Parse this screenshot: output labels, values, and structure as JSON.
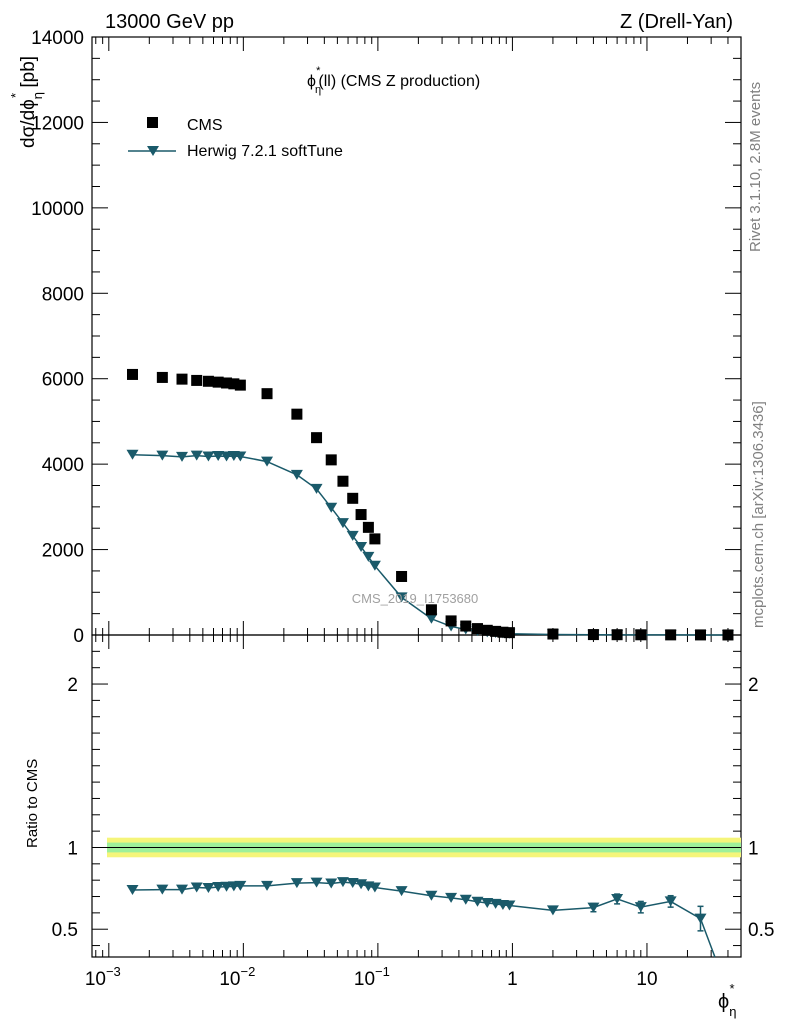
{
  "header": {
    "left": "13000 GeV pp",
    "right": "Z (Drell-Yan)"
  },
  "side_text": {
    "rivet": "Rivet 3.1.10,  2.8M events",
    "source": "mcplots.cern.ch [arXiv:1306.3436]"
  },
  "watermark": "CMS_2019_I1753680",
  "plot_title": {
    "phi": "ϕ",
    "sub": "η",
    "sup": "*",
    "rest": "(ll) (CMS Z production)"
  },
  "ylabel_main": {
    "prefix": "dσ/dϕ",
    "sub": "η",
    "sup": "*",
    "suffix": " [pb]"
  },
  "ylabel_ratio": "Ratio to CMS",
  "xlabel": {
    "phi": "ϕ",
    "sub": "η",
    "sup": "*"
  },
  "legend": {
    "cms": "CMS",
    "herwig": "Herwig 7.2.1 softTune"
  },
  "colors": {
    "data": "#000000",
    "mc": "#1a5a6a",
    "band_outer": "#f5f57a",
    "band_inner": "#9ef09a"
  },
  "chart_data": {
    "type": "scatter",
    "x_scale": "log",
    "xlim": [
      0.00075,
      50
    ],
    "x_ticks": [
      {
        "v": 0.001,
        "base": "10",
        "exp": "−3"
      },
      {
        "v": 0.01,
        "base": "10",
        "exp": "−2"
      },
      {
        "v": 0.1,
        "base": "10",
        "exp": "−1"
      },
      {
        "v": 1,
        "base": "1",
        "exp": ""
      },
      {
        "v": 10,
        "base": "10",
        "exp": ""
      }
    ],
    "main": {
      "ylim": [
        0,
        14000
      ],
      "y_ticks": [
        {
          "v": 2000,
          "label": "2000"
        },
        {
          "v": 4000,
          "label": "4000"
        },
        {
          "v": 6000,
          "label": "6000"
        },
        {
          "v": 8000,
          "label": "8000"
        },
        {
          "v": 10000,
          "label": "10000"
        },
        {
          "v": 12000,
          "label": "12000"
        },
        {
          "v": 14000,
          "label": "14000"
        }
      ],
      "zero_label": "0",
      "series": [
        {
          "name": "CMS",
          "style": "square",
          "x": [
            0.0015,
            0.0025,
            0.0035,
            0.0045,
            0.0055,
            0.0065,
            0.0075,
            0.0085,
            0.0095,
            0.015,
            0.025,
            0.035,
            0.045,
            0.055,
            0.065,
            0.075,
            0.085,
            0.095,
            0.15,
            0.25,
            0.35,
            0.45,
            0.55,
            0.65,
            0.75,
            0.85,
            0.95,
            2,
            4,
            6,
            9,
            15,
            25,
            40
          ],
          "values": [
            6100,
            6030,
            5990,
            5960,
            5940,
            5920,
            5900,
            5880,
            5850,
            5650,
            5170,
            4620,
            4100,
            3600,
            3200,
            2820,
            2520,
            2250,
            1370,
            590,
            330,
            210,
            150,
            110,
            85,
            65,
            55,
            23,
            10,
            7,
            5,
            3,
            2,
            1
          ]
        },
        {
          "name": "Herwig 7.2.1 softTune",
          "style": "triangle-down-line",
          "x": [
            0.0015,
            0.0025,
            0.0035,
            0.0045,
            0.0055,
            0.0065,
            0.0075,
            0.0085,
            0.0095,
            0.015,
            0.025,
            0.035,
            0.045,
            0.055,
            0.065,
            0.075,
            0.085,
            0.095,
            0.15,
            0.25,
            0.35,
            0.45,
            0.55,
            0.65,
            0.75,
            0.85,
            0.95,
            2,
            4,
            6,
            9,
            15,
            25,
            40
          ],
          "values": [
            4220,
            4200,
            4170,
            4200,
            4180,
            4190,
            4180,
            4190,
            4180,
            4060,
            3750,
            3420,
            2980,
            2620,
            2320,
            2060,
            1830,
            1620,
            880,
            380,
            200,
            130,
            90,
            62,
            47,
            37,
            30,
            13,
            6,
            4,
            3,
            2,
            1,
            0.5
          ]
        }
      ]
    },
    "ratio": {
      "ylim": [
        0.33,
        2.3
      ],
      "y_ticks": [
        {
          "v": 0.5,
          "label": "0.5"
        },
        {
          "v": 1,
          "label": "1"
        },
        {
          "v": 2,
          "label": "2"
        }
      ],
      "band_outer": 0.06,
      "band_inner": 0.03,
      "series": {
        "name": "Herwig 7.2.1 softTune",
        "x": [
          0.0015,
          0.0025,
          0.0035,
          0.0045,
          0.0055,
          0.0065,
          0.0075,
          0.0085,
          0.0095,
          0.015,
          0.025,
          0.035,
          0.045,
          0.055,
          0.065,
          0.075,
          0.085,
          0.095,
          0.15,
          0.25,
          0.35,
          0.45,
          0.55,
          0.65,
          0.75,
          0.85,
          0.95,
          2,
          4,
          6,
          9,
          15,
          25
        ],
        "values": [
          0.74,
          0.742,
          0.742,
          0.755,
          0.752,
          0.758,
          0.76,
          0.762,
          0.765,
          0.765,
          0.782,
          0.785,
          0.78,
          0.788,
          0.783,
          0.775,
          0.762,
          0.755,
          0.733,
          0.705,
          0.692,
          0.68,
          0.668,
          0.66,
          0.655,
          0.648,
          0.645,
          0.615,
          0.632,
          0.685,
          0.635,
          0.67,
          0.565
        ],
        "errors": [
          0,
          0,
          0,
          0,
          0,
          0,
          0,
          0,
          0,
          0,
          0,
          0,
          0,
          0,
          0,
          0,
          0,
          0,
          0,
          0,
          0,
          0,
          0,
          0,
          0,
          0,
          0,
          0,
          0.025,
          0.03,
          0.035,
          0.035,
          0.075
        ]
      },
      "tail": {
        "x": 32,
        "y": 0.3
      }
    }
  }
}
